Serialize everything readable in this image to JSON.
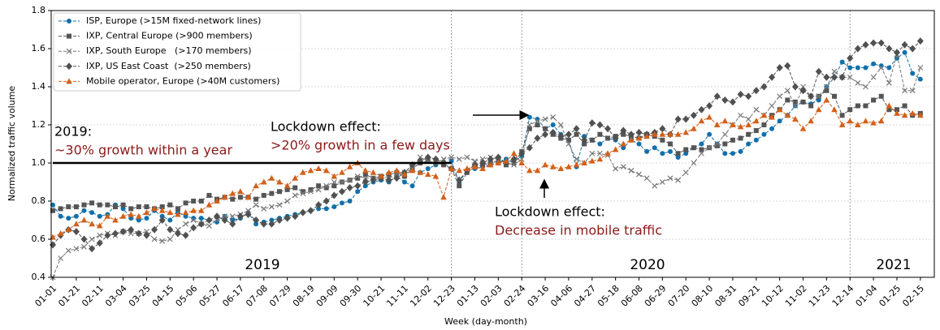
{
  "chart_data": {
    "type": "line",
    "x_label": "Week (day-month)",
    "y_label": "Normalized traffic volume",
    "categories": [
      "01-01",
      null,
      null,
      "01-21",
      null,
      null,
      "02-11",
      null,
      null,
      "03-04",
      null,
      null,
      "03-25",
      null,
      null,
      "04-15",
      null,
      null,
      "05-06",
      null,
      null,
      "05-27",
      null,
      null,
      "06-17",
      null,
      null,
      "07-08",
      null,
      null,
      "07-29",
      null,
      null,
      "08-19",
      null,
      null,
      "09-09",
      null,
      null,
      "09-30",
      null,
      null,
      "10-21",
      null,
      null,
      "11-11",
      null,
      null,
      "12-02",
      null,
      null,
      "12-23",
      null,
      null,
      "01-13",
      null,
      null,
      "02-03",
      null,
      null,
      "02-24",
      null,
      null,
      "03-16",
      null,
      null,
      "04-06",
      null,
      null,
      "04-27",
      null,
      null,
      "05-18",
      null,
      null,
      "06-08",
      null,
      null,
      "06-29",
      null,
      null,
      "07-20",
      null,
      null,
      "08-10",
      null,
      null,
      "08-31",
      null,
      null,
      "09-21",
      null,
      null,
      "10-12",
      null,
      null,
      "11-02",
      null,
      null,
      "11-23",
      null,
      null,
      "12-14",
      null,
      null,
      "01-04",
      null,
      null,
      "01-25",
      null,
      null,
      "02-15"
    ],
    "ylim": [
      0.4,
      1.8
    ],
    "yticks": [
      0.4,
      0.6,
      0.8,
      {
        "value": 1,
        "label": "1.0"
      },
      1.2,
      1.4,
      1.6,
      1.8
    ],
    "grid": true,
    "legend": "upper left",
    "vertical_lines": [
      "12-23",
      "02-24",
      "12-14"
    ],
    "reference_line": 1,
    "years": [
      "2019",
      "2020",
      "2021"
    ],
    "annotations": [
      {
        "title": "2019:",
        "text": "~30% growth within a year"
      },
      {
        "title": "Lockdown effect:",
        "text": ">20% growth in a few days"
      },
      {
        "title": "Lockdown effect:",
        "text": "Decrease in mobile traffic"
      }
    ],
    "series": [
      {
        "name": "ISP, Europe (>15M fixed-network lines)",
        "color": "#1170aa",
        "marker": "circle",
        "values": [
          0.78,
          0.72,
          0.71,
          0.72,
          0.75,
          0.74,
          0.72,
          0.73,
          0.78,
          0.76,
          0.71,
          0.7,
          0.71,
          0.75,
          0.72,
          0.7,
          0.74,
          0.72,
          0.71,
          0.71,
          0.7,
          0.69,
          0.72,
          0.7,
          0.71,
          0.74,
          0.68,
          0.69,
          0.7,
          0.71,
          0.72,
          0.73,
          0.74,
          0.75,
          0.76,
          0.76,
          0.77,
          0.79,
          0.8,
          0.85,
          0.88,
          0.9,
          0.91,
          0.9,
          0.93,
          0.9,
          0.88,
          0.95,
          0.97,
          0.99,
          1.0,
          1.01,
          0.9,
          0.96,
          0.97,
          0.98,
          0.99,
          1.0,
          1.02,
          1.0,
          1.04,
          1.24,
          1.23,
          1.18,
          1.2,
          1.15,
          1.12,
          0.98,
          1.14,
          1.12,
          1.1,
          1.13,
          1.12,
          1.08,
          1.12,
          1.1,
          1.06,
          1.08,
          1.05,
          1.06,
          1.03,
          1.05,
          1.08,
          1.1,
          1.15,
          1.1,
          1.05,
          1.05,
          1.06,
          1.1,
          1.12,
          1.15,
          1.18,
          1.22,
          1.25,
          1.3,
          1.32,
          1.31,
          1.33,
          1.4,
          1.45,
          1.53,
          1.5,
          1.5,
          1.5,
          1.52,
          1.51,
          1.5,
          1.55,
          1.58,
          1.47,
          1.44
        ]
      },
      {
        "name": "IXP, Central Europe (>900 members)",
        "color": "#555555",
        "marker": "square",
        "values": [
          0.75,
          0.76,
          0.77,
          0.77,
          0.78,
          0.79,
          0.78,
          0.78,
          0.77,
          0.78,
          0.76,
          0.77,
          0.77,
          0.76,
          0.77,
          0.78,
          0.76,
          0.79,
          0.8,
          0.8,
          0.83,
          0.81,
          0.82,
          0.81,
          0.82,
          0.82,
          0.81,
          0.83,
          0.84,
          0.85,
          0.86,
          0.87,
          0.85,
          0.86,
          0.88,
          0.87,
          0.88,
          0.9,
          0.91,
          0.92,
          0.94,
          0.92,
          0.93,
          0.94,
          0.95,
          0.93,
          0.97,
          1.0,
          1.01,
          1.0,
          0.99,
          0.97,
          0.88,
          0.95,
          0.98,
          0.99,
          1.0,
          1.01,
          0.99,
          1.0,
          1.06,
          1.18,
          1.2,
          1.18,
          1.15,
          1.13,
          1.12,
          1.15,
          1.1,
          1.12,
          1.15,
          1.13,
          1.14,
          1.15,
          1.14,
          1.13,
          1.15,
          1.14,
          1.12,
          1.1,
          1.05,
          1.07,
          1.08,
          1.07,
          1.08,
          1.09,
          1.1,
          1.12,
          1.13,
          1.15,
          1.17,
          1.2,
          1.25,
          1.28,
          1.33,
          1.32,
          1.32,
          1.3,
          1.35,
          1.38,
          1.35,
          1.25,
          1.28,
          1.3,
          1.3,
          1.33,
          1.35,
          1.28,
          1.28,
          1.3,
          1.25,
          1.26
        ]
      },
      {
        "name": "IXP, South Europe   (>170 members)",
        "color": "#777777",
        "marker": "x",
        "values": [
          0.4,
          0.5,
          0.54,
          0.55,
          0.56,
          0.6,
          0.62,
          0.63,
          0.62,
          0.64,
          0.63,
          0.63,
          0.64,
          0.6,
          0.59,
          0.6,
          0.65,
          0.68,
          0.7,
          0.68,
          0.67,
          0.7,
          0.72,
          0.72,
          0.73,
          0.75,
          0.78,
          0.76,
          0.77,
          0.78,
          0.8,
          0.83,
          0.84,
          0.85,
          0.86,
          0.88,
          0.9,
          0.9,
          0.91,
          0.93,
          0.92,
          0.92,
          0.93,
          0.92,
          0.94,
          0.95,
          0.97,
          1.03,
          1.01,
          1.0,
          1.02,
          1.03,
          1.02,
          1.03,
          1.01,
          1.02,
          1.03,
          1.02,
          1.0,
          0.99,
          1.02,
          1.2,
          1.22,
          1.23,
          1.24,
          1.2,
          1.1,
          1.02,
          1.0,
          1.05,
          1.05,
          1.04,
          0.97,
          0.98,
          0.96,
          0.94,
          0.92,
          0.88,
          0.9,
          0.92,
          0.91,
          0.95,
          1.0,
          1.05,
          1.08,
          1.1,
          1.15,
          1.2,
          1.25,
          1.23,
          1.28,
          1.25,
          1.3,
          1.35,
          1.38,
          1.3,
          1.4,
          1.35,
          1.35,
          1.4,
          1.48,
          1.45,
          1.45,
          1.42,
          1.4,
          1.45,
          1.5,
          1.42,
          1.57,
          1.38,
          1.38,
          1.5
        ]
      },
      {
        "name": "IXP, US East Coast  (>250 members)",
        "color": "#505050",
        "marker": "diamond",
        "values": [
          0.57,
          0.62,
          0.65,
          0.64,
          0.6,
          0.55,
          0.58,
          0.62,
          0.63,
          0.64,
          0.65,
          0.63,
          0.62,
          0.65,
          0.7,
          0.65,
          0.63,
          0.62,
          0.66,
          0.68,
          0.7,
          0.72,
          0.7,
          0.68,
          0.72,
          0.73,
          0.7,
          0.68,
          0.68,
          0.7,
          0.71,
          0.72,
          0.74,
          0.75,
          0.78,
          0.8,
          0.83,
          0.85,
          0.87,
          0.88,
          0.9,
          0.91,
          0.92,
          0.91,
          0.92,
          0.95,
          0.99,
          1.01,
          1.03,
          1.02,
          1.0,
          0.97,
          0.91,
          0.96,
          0.99,
          1.0,
          1.02,
          1.03,
          1.0,
          1.02,
          1.05,
          1.08,
          1.13,
          1.15,
          1.16,
          1.14,
          1.15,
          1.18,
          1.12,
          1.21,
          1.2,
          1.18,
          1.13,
          1.17,
          1.15,
          1.16,
          1.15,
          1.16,
          1.18,
          1.15,
          1.23,
          1.23,
          1.25,
          1.28,
          1.3,
          1.35,
          1.33,
          1.32,
          1.36,
          1.35,
          1.38,
          1.4,
          1.45,
          1.5,
          1.51,
          1.4,
          1.38,
          1.35,
          1.48,
          1.45,
          1.45,
          1.45,
          1.55,
          1.6,
          1.62,
          1.63,
          1.63,
          1.6,
          1.58,
          1.62,
          1.6,
          1.64
        ]
      },
      {
        "name": "Mobile operator, Europe (>40M customers)",
        "color": "#d2601a",
        "marker": "triangle",
        "values": [
          0.61,
          0.63,
          0.65,
          0.68,
          0.7,
          0.68,
          0.67,
          0.72,
          0.7,
          0.72,
          0.73,
          0.72,
          0.74,
          0.76,
          0.75,
          0.74,
          0.73,
          0.74,
          0.75,
          0.75,
          0.78,
          0.8,
          0.82,
          0.84,
          0.85,
          0.82,
          0.88,
          0.9,
          0.92,
          0.9,
          0.88,
          0.92,
          0.95,
          0.96,
          0.97,
          0.96,
          0.93,
          0.95,
          0.98,
          1.0,
          0.96,
          0.95,
          0.93,
          0.95,
          0.96,
          0.94,
          0.96,
          0.95,
          0.94,
          0.93,
          0.82,
          0.97,
          0.96,
          0.97,
          0.98,
          0.97,
          0.99,
          1.0,
          1.01,
          1.05,
          1.0,
          0.96,
          0.96,
          0.99,
          0.98,
          0.97,
          0.98,
          0.99,
          1.0,
          1.01,
          1.02,
          1.05,
          1.07,
          1.1,
          1.12,
          1.13,
          1.14,
          1.15,
          1.15,
          1.15,
          1.15,
          1.16,
          1.18,
          1.22,
          1.24,
          1.2,
          1.22,
          1.2,
          1.19,
          1.2,
          1.22,
          1.25,
          1.24,
          1.28,
          1.25,
          1.23,
          1.18,
          1.22,
          1.28,
          1.33,
          1.28,
          1.2,
          1.22,
          1.2,
          1.22,
          1.21,
          1.22,
          1.3,
          1.26,
          1.25,
          1.26,
          1.25
        ]
      }
    ]
  }
}
